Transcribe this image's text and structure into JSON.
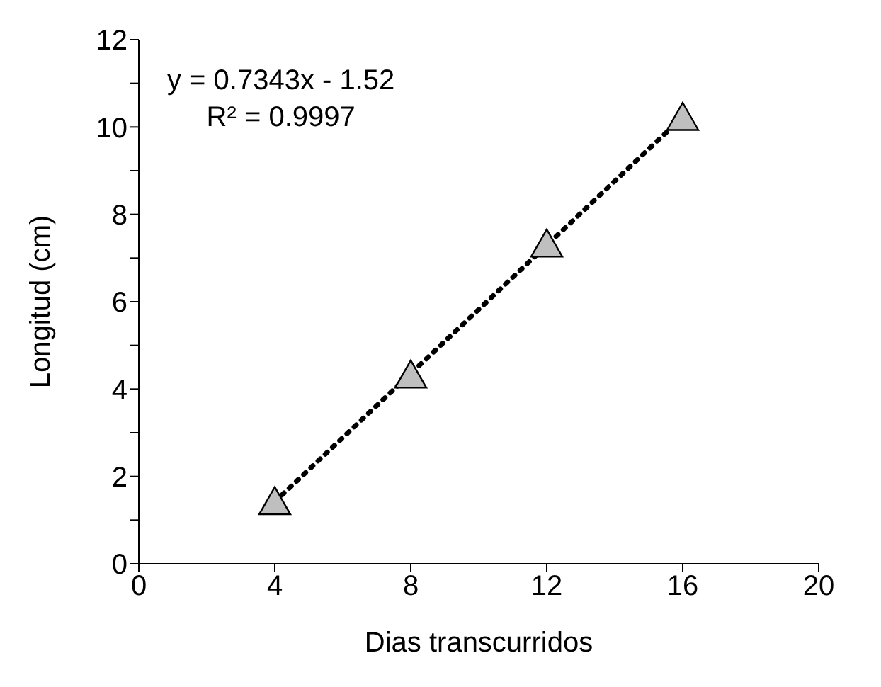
{
  "chart_data": {
    "type": "scatter",
    "xlabel": "Dias transcurridos",
    "ylabel": "Longitud (cm)",
    "annotations": [
      "y = 0.7343x - 1.52",
      "R² = 0.9997"
    ],
    "xlim": [
      0,
      20
    ],
    "xticks": [
      0,
      4,
      8,
      12,
      16,
      20
    ],
    "ylim": [
      0,
      12
    ],
    "yticks": [
      0,
      {
        "value": 1,
        "label": null
      },
      2,
      {
        "value": 3,
        "label": null
      },
      4,
      {
        "value": 5,
        "label": null
      },
      6,
      {
        "value": 7,
        "label": null
      },
      8,
      {
        "value": 9,
        "label": null
      },
      10,
      {
        "value": 11,
        "label": null
      },
      12
    ],
    "grid": false,
    "legend": false,
    "series": [
      {
        "type": "line",
        "color": "#000000",
        "x": [
          4,
          16
        ],
        "values": [
          1.42,
          10.23
        ],
        "line_style": "dotted",
        "marker": "none"
      },
      {
        "color": "#bfbfbf",
        "x": [
          4,
          8,
          12,
          16
        ],
        "values": [
          1.4,
          4.3,
          7.3,
          10.2
        ],
        "marker": "triangle"
      }
    ]
  }
}
